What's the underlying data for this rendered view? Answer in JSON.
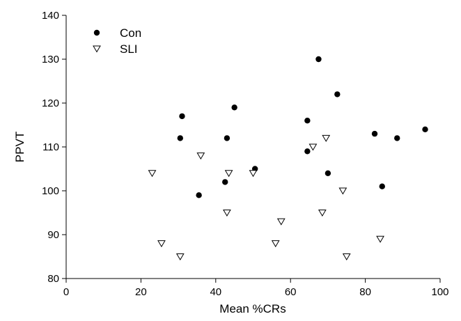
{
  "chart_data": {
    "type": "scatter",
    "title": "",
    "xlabel": "Mean %CRs",
    "ylabel": "PPVT",
    "xlim": [
      0,
      100
    ],
    "ylim": [
      80,
      140
    ],
    "xticks": [
      0,
      20,
      40,
      60,
      80,
      100
    ],
    "yticks": [
      80,
      90,
      100,
      110,
      120,
      130,
      140
    ],
    "grid": false,
    "legend_position": "top-left",
    "series": [
      {
        "name": "Con",
        "marker": "filled-circle",
        "color": "#000000",
        "points": [
          {
            "x": 30.5,
            "y": 112
          },
          {
            "x": 31,
            "y": 117
          },
          {
            "x": 35.5,
            "y": 99
          },
          {
            "x": 42.5,
            "y": 102
          },
          {
            "x": 43,
            "y": 112
          },
          {
            "x": 45,
            "y": 119
          },
          {
            "x": 50.5,
            "y": 105
          },
          {
            "x": 64.5,
            "y": 116
          },
          {
            "x": 64.5,
            "y": 109
          },
          {
            "x": 67.5,
            "y": 130
          },
          {
            "x": 70,
            "y": 104
          },
          {
            "x": 72.5,
            "y": 122
          },
          {
            "x": 82.5,
            "y": 113
          },
          {
            "x": 84.5,
            "y": 101
          },
          {
            "x": 88.5,
            "y": 112
          },
          {
            "x": 96,
            "y": 114
          }
        ]
      },
      {
        "name": "SLI",
        "marker": "open-triangle-down",
        "color": "#000000",
        "points": [
          {
            "x": 23,
            "y": 104
          },
          {
            "x": 25.5,
            "y": 88
          },
          {
            "x": 30.5,
            "y": 85
          },
          {
            "x": 36,
            "y": 108
          },
          {
            "x": 43,
            "y": 95
          },
          {
            "x": 43.5,
            "y": 104
          },
          {
            "x": 50,
            "y": 104
          },
          {
            "x": 56,
            "y": 88
          },
          {
            "x": 57.5,
            "y": 93
          },
          {
            "x": 66,
            "y": 110
          },
          {
            "x": 68.5,
            "y": 95
          },
          {
            "x": 69.5,
            "y": 112
          },
          {
            "x": 74,
            "y": 100
          },
          {
            "x": 75,
            "y": 85
          },
          {
            "x": 84,
            "y": 89
          }
        ]
      }
    ]
  }
}
